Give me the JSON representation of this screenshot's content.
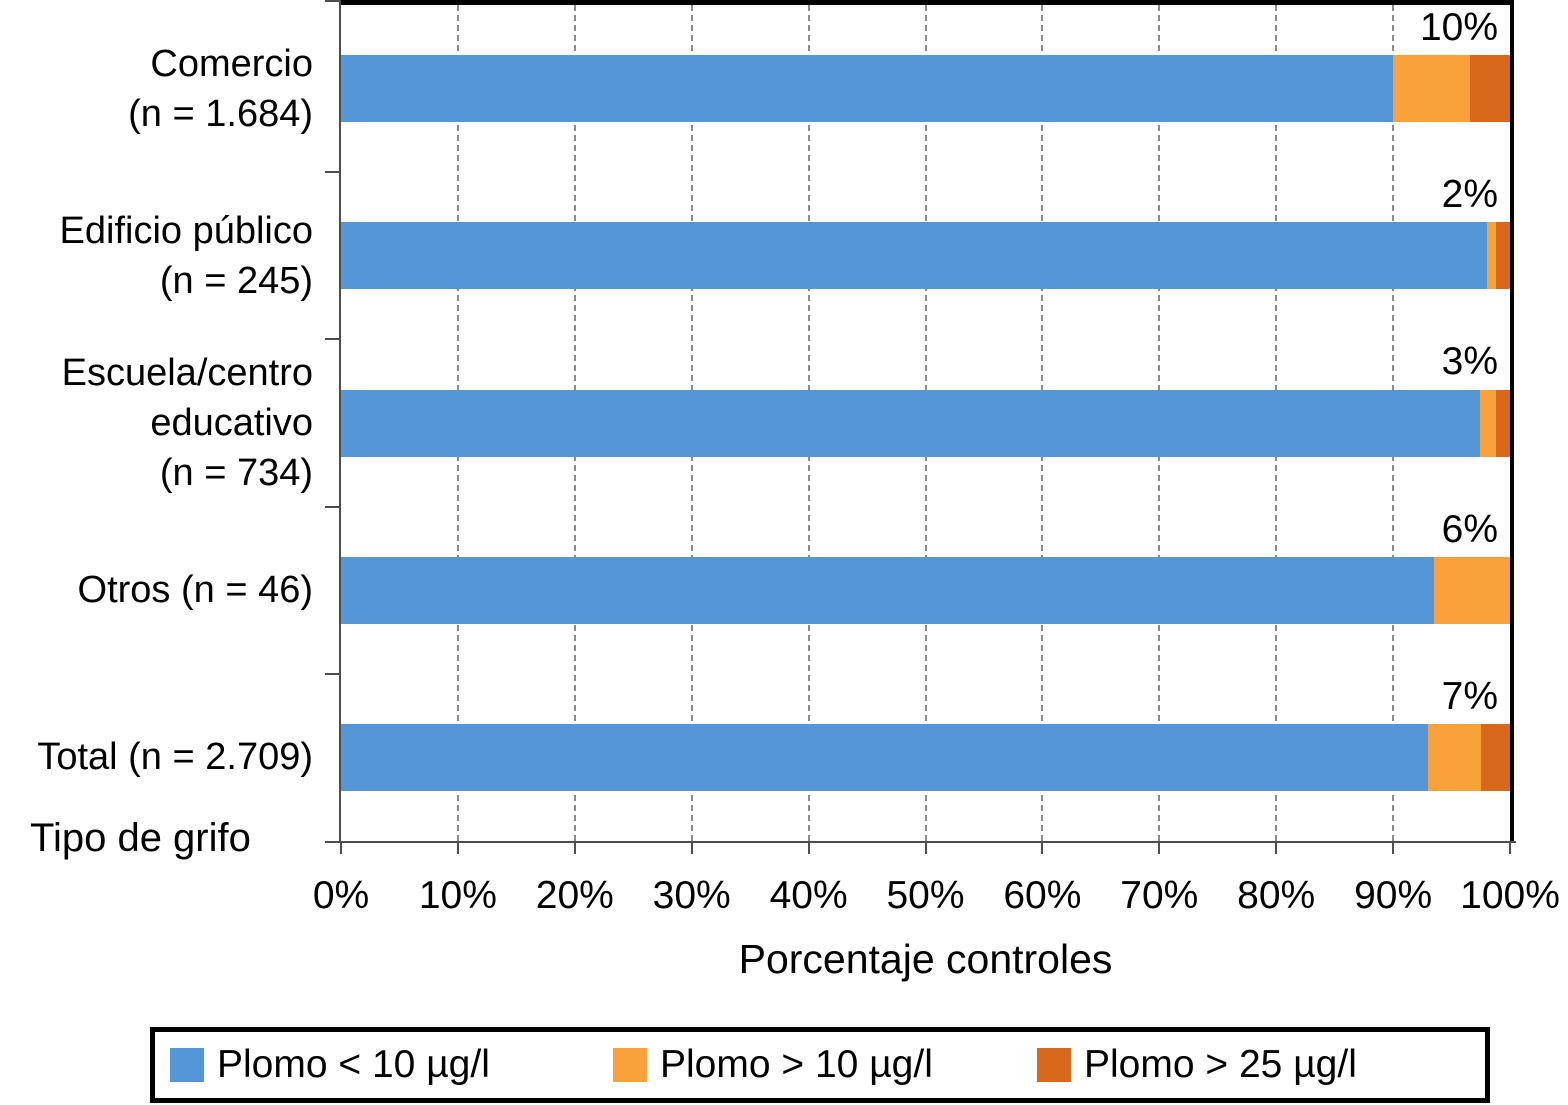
{
  "chart_data": {
    "type": "bar",
    "orientation": "horizontal",
    "stacked": true,
    "xlabel": "Porcentaje controles",
    "category_axis_title": "Tipo de grifo",
    "xlim": [
      0,
      100
    ],
    "grid": "vertical-dashed",
    "legend_position": "bottom",
    "x_ticks": [
      "0%",
      "10%",
      "20%",
      "30%",
      "40%",
      "50%",
      "60%",
      "70%",
      "80%",
      "90%",
      "100%"
    ],
    "categories": [
      "Comercio (n = 1.684)",
      "Edificio público (n = 245)",
      "Escuela/centro educativo (n = 734)",
      "Otros (n = 46)",
      "Total (n = 2.709)"
    ],
    "category_label_lines": [
      [
        "Comercio",
        "(n = 1.684)"
      ],
      [
        "Edificio público",
        "(n = 245)"
      ],
      [
        "Escuela/centro",
        "educativo",
        "(n = 734)"
      ],
      [
        "Otros (n = 46)"
      ],
      [
        "Total (n = 2.709)"
      ]
    ],
    "series": [
      {
        "name": "Plomo < 10 µg/l",
        "color": "#5596D8",
        "values": [
          90.0,
          98.0,
          97.4,
          93.5,
          93.0
        ]
      },
      {
        "name": "Plomo > 10 µg/l",
        "color": "#F9A13B",
        "values": [
          6.6,
          0.8,
          1.4,
          6.5,
          4.5
        ]
      },
      {
        "name": "Plomo > 25 µg/l",
        "color": "#D8691C",
        "values": [
          3.4,
          1.2,
          1.2,
          0.0,
          2.5
        ]
      }
    ],
    "bar_labels": [
      "10%",
      "2%",
      "3%",
      "6%",
      "7%"
    ],
    "colors": {
      "axis": "#4d4d4d",
      "gridline": "#8c8c8c",
      "frame": "#000000"
    }
  }
}
